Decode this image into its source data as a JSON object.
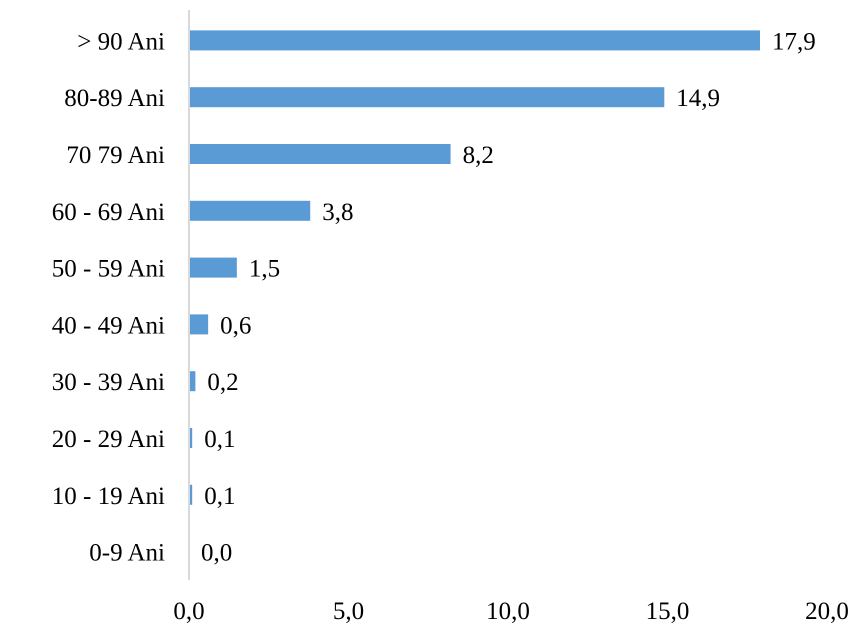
{
  "chart_data": {
    "type": "bar",
    "orientation": "horizontal",
    "categories": [
      "> 90 Ani",
      "80-89 Ani",
      "70 79 Ani",
      "60 - 69 Ani",
      "50 - 59 Ani",
      "40 - 49 Ani",
      "30 - 39 Ani",
      "20 - 29 Ani",
      "10 - 19 Ani",
      "0-9 Ani"
    ],
    "values": [
      17.9,
      14.9,
      8.2,
      3.8,
      1.5,
      0.6,
      0.2,
      0.1,
      0.1,
      0.0
    ],
    "value_labels": [
      "17,9",
      "14,9",
      "8,2",
      "3,8",
      "1,5",
      "0,6",
      "0,2",
      "0,1",
      "0,1",
      "0,0"
    ],
    "x_ticks": [
      0,
      5,
      10,
      15,
      20
    ],
    "x_tick_labels": [
      "0,0",
      "5,0",
      "10,0",
      "15,0",
      "20,0"
    ],
    "xlim": [
      0,
      20
    ],
    "grid": false,
    "legend": "none",
    "bar_color": "#5b9bd5",
    "axis_color": "#d9d9d9"
  }
}
